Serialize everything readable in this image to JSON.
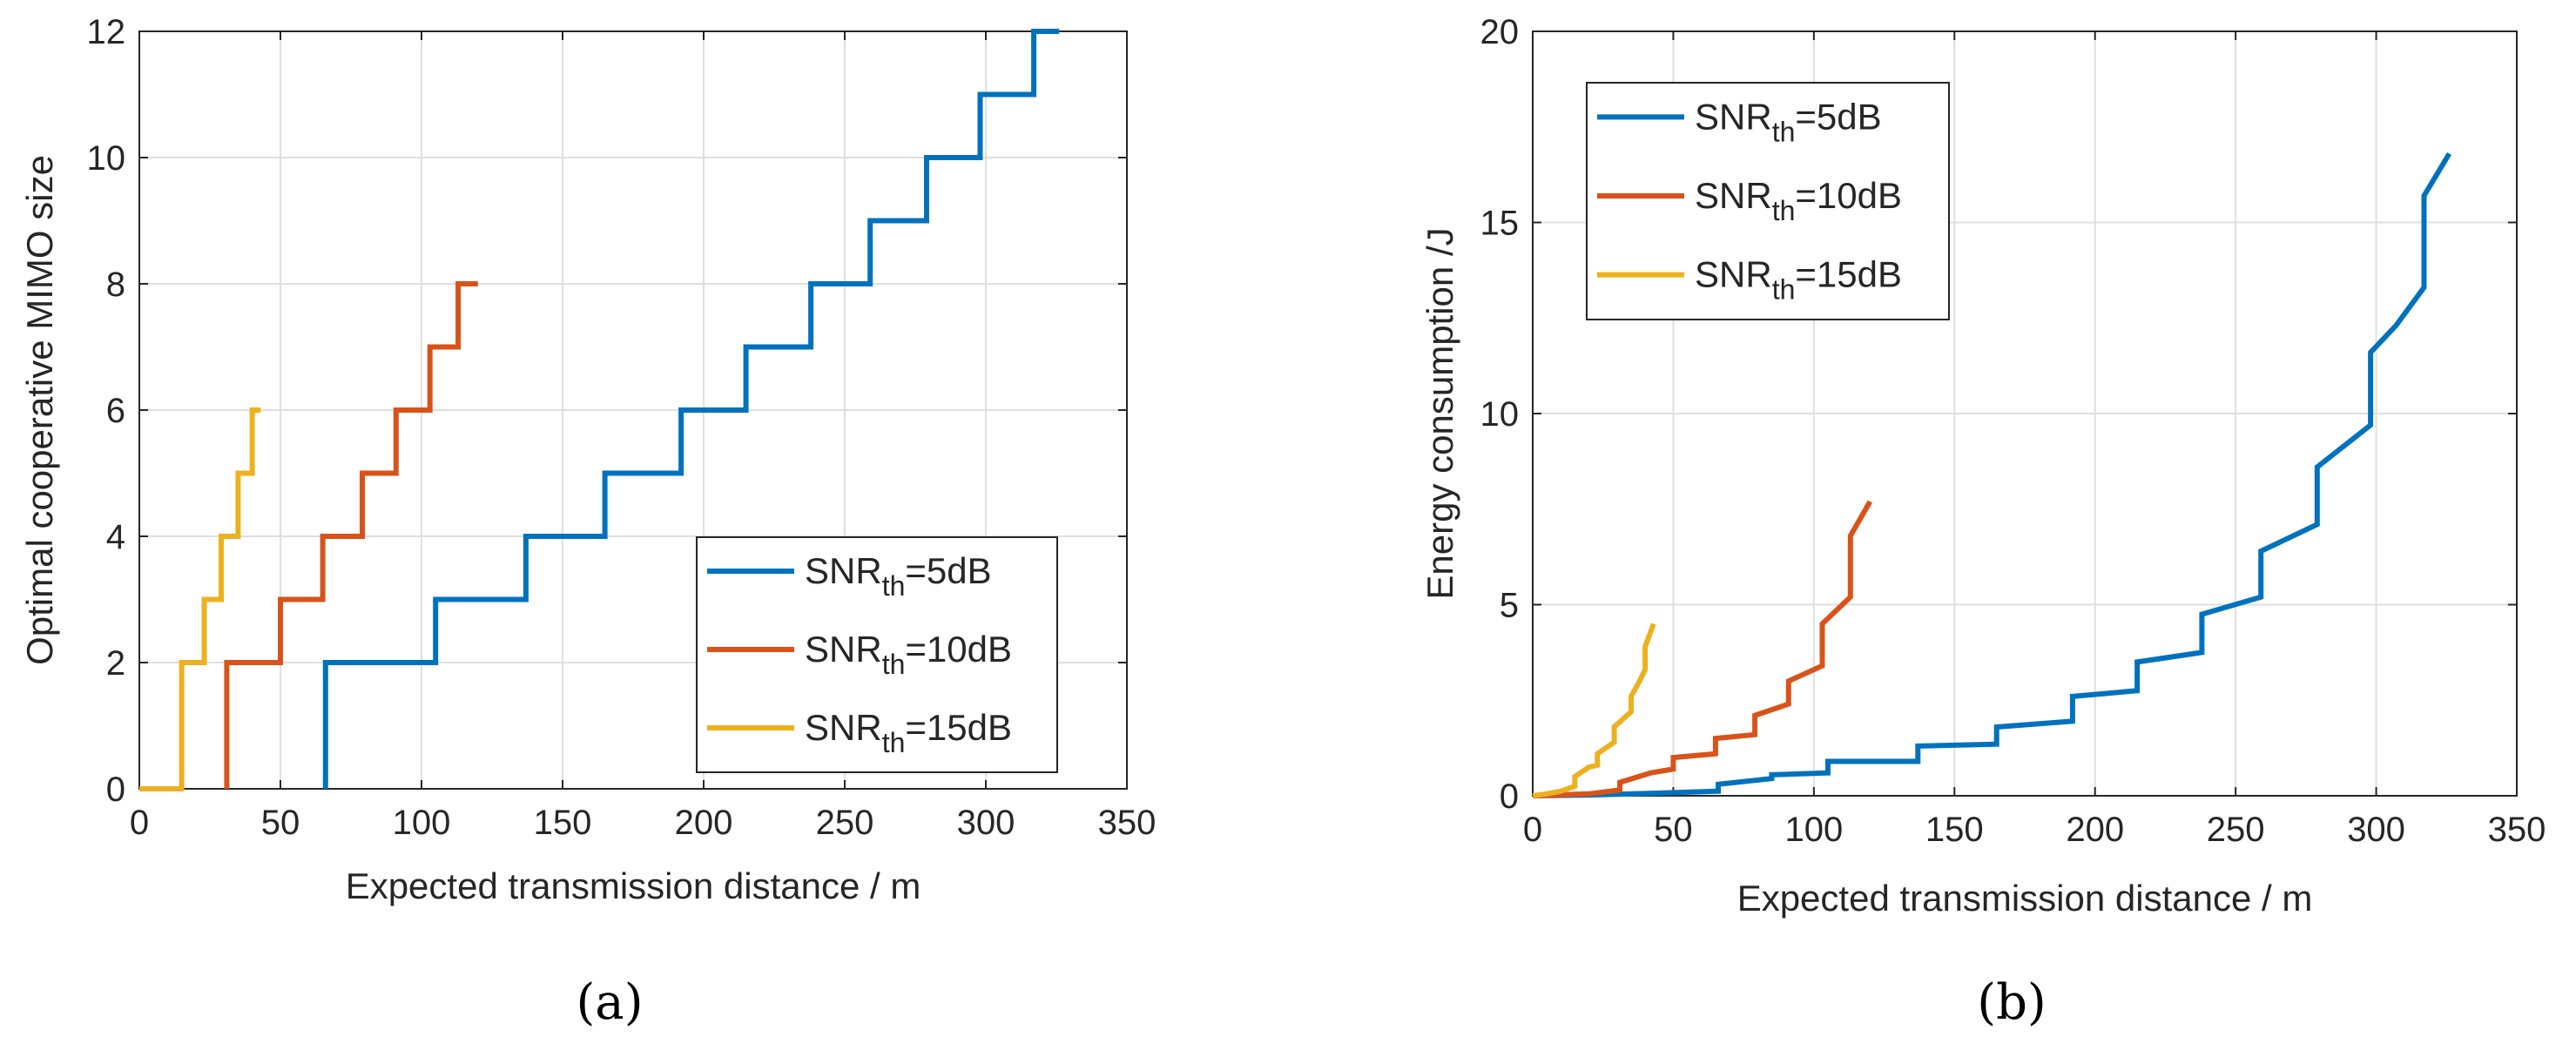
{
  "chart_data": [
    {
      "id": "a",
      "type": "line",
      "panel_label": "(a)",
      "xlabel": "Expected transmission distance / m",
      "ylabel": "Optimal cooperative MIMO size",
      "xlim": [
        0,
        350
      ],
      "ylim": [
        0,
        12
      ],
      "xticks": [
        0,
        50,
        100,
        150,
        200,
        250,
        300,
        350
      ],
      "yticks": [
        0,
        2,
        4,
        6,
        8,
        10,
        12
      ],
      "grid": true,
      "legend_position": "lower-right",
      "series": [
        {
          "name": "SNR_th=5dB",
          "legend": {
            "prefix": "SNR",
            "sub": "th",
            "suffix": "=5dB"
          },
          "color": "#0072BD",
          "x": [
            66,
            66,
            105,
            105,
            137,
            137,
            165,
            165,
            192,
            192,
            215,
            215,
            238,
            238,
            259,
            259,
            279,
            279,
            298,
            298,
            317,
            317,
            326
          ],
          "y": [
            0,
            2,
            2,
            3,
            3,
            4,
            4,
            5,
            5,
            6,
            6,
            7,
            7,
            8,
            8,
            9,
            9,
            10,
            10,
            11,
            11,
            12,
            12
          ]
        },
        {
          "name": "SNR_th=10dB",
          "legend": {
            "prefix": "SNR",
            "sub": "th",
            "suffix": "=10dB"
          },
          "color": "#D95319",
          "x": [
            31,
            31,
            50,
            50,
            65,
            65,
            79,
            79,
            91,
            91,
            103,
            103,
            113,
            113,
            120
          ],
          "y": [
            0,
            2,
            2,
            3,
            3,
            4,
            4,
            5,
            5,
            6,
            6,
            7,
            7,
            8,
            8
          ]
        },
        {
          "name": "SNR_th=15dB",
          "legend": {
            "prefix": "SNR",
            "sub": "th",
            "suffix": "=15dB"
          },
          "color": "#EDB120",
          "x": [
            0,
            15,
            15,
            23,
            23,
            29,
            29,
            35,
            35,
            40,
            40,
            43
          ],
          "y": [
            0,
            0,
            2,
            2,
            3,
            3,
            4,
            4,
            5,
            5,
            6,
            6
          ]
        }
      ]
    },
    {
      "id": "b",
      "type": "line",
      "panel_label": "(b)",
      "xlabel": "Expected transmission distance / m",
      "ylabel": "Energy consumption /J",
      "xlim": [
        0,
        350
      ],
      "ylim": [
        0,
        20
      ],
      "xticks": [
        0,
        50,
        100,
        150,
        200,
        250,
        300,
        350
      ],
      "yticks": [
        0,
        5,
        10,
        15,
        20
      ],
      "grid": true,
      "legend_position": "top-left",
      "series": [
        {
          "name": "SNR_th=5dB",
          "legend": {
            "prefix": "SNR",
            "sub": "th",
            "suffix": "=5dB"
          },
          "color": "#0072BD",
          "x": [
            0,
            20,
            40,
            66,
            66,
            85,
            85,
            105,
            105,
            137,
            137,
            165,
            165,
            192,
            192,
            215,
            215,
            238,
            238,
            259,
            259,
            279,
            279,
            298,
            298,
            307,
            317,
            317,
            326
          ],
          "y": [
            0,
            0.02,
            0.06,
            0.12,
            0.3,
            0.45,
            0.55,
            0.6,
            0.9,
            0.9,
            1.3,
            1.35,
            1.8,
            1.95,
            2.6,
            2.75,
            3.5,
            3.75,
            4.75,
            5.2,
            6.4,
            7.1,
            8.6,
            9.7,
            11.6,
            12.3,
            13.3,
            15.7,
            16.8
          ]
        },
        {
          "name": "SNR_th=10dB",
          "legend": {
            "prefix": "SNR",
            "sub": "th",
            "suffix": "=10dB"
          },
          "color": "#D95319",
          "x": [
            0,
            20,
            31,
            31,
            42,
            50,
            50,
            65,
            65,
            79,
            79,
            91,
            91,
            103,
            103,
            113,
            113,
            120
          ],
          "y": [
            0,
            0.05,
            0.15,
            0.35,
            0.6,
            0.7,
            1.0,
            1.1,
            1.5,
            1.6,
            2.1,
            2.4,
            3.0,
            3.4,
            4.5,
            5.2,
            6.8,
            7.7
          ]
        },
        {
          "name": "SNR_th=15dB",
          "legend": {
            "prefix": "SNR",
            "sub": "th",
            "suffix": "=15dB"
          },
          "color": "#EDB120",
          "x": [
            0,
            5,
            10,
            15,
            15,
            20,
            23,
            23,
            27,
            29,
            29,
            32,
            35,
            35,
            38,
            40,
            40,
            43
          ],
          "y": [
            0,
            0.05,
            0.12,
            0.25,
            0.5,
            0.75,
            0.8,
            1.1,
            1.3,
            1.4,
            1.8,
            2.0,
            2.2,
            2.6,
            3.0,
            3.3,
            3.9,
            4.5
          ]
        }
      ]
    }
  ]
}
